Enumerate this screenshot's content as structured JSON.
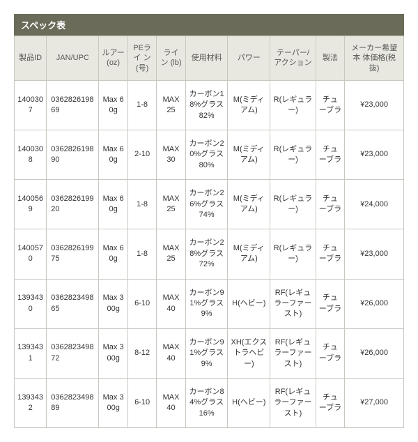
{
  "title": "スペック表",
  "table": {
    "columns": [
      "製品ID",
      "JAN/UPC",
      "ルアー\n(oz)",
      "PEライ\nン(号)",
      "ライン\n(lb)",
      "使用材料",
      "パワー",
      "テーパー/\nアクション",
      "製法",
      "メーカー希望本\n体価格(税抜)"
    ],
    "rows": [
      [
        "1400307",
        "036282619869",
        "Max 60g",
        "1-8",
        "MAX 25",
        "カーボン18%グラス82%",
        "M(ミディアム)",
        "R(レギュラー)",
        "チューブラ",
        "¥23,000"
      ],
      [
        "1400308",
        "036282619890",
        "Max 60g",
        "2-10",
        "MAX 30",
        "カーボン20%グラス80%",
        "M(ミディアム)",
        "R(レギュラー)",
        "チューブラ",
        "¥23,000"
      ],
      [
        "1400569",
        "036282619920",
        "Max 60g",
        "1-8",
        "MAX 25",
        "カーボン26%グラス74%",
        "M(ミディアム)",
        "R(レギュラー)",
        "チューブラ",
        "¥24,000"
      ],
      [
        "1400570",
        "036282619975",
        "Max 60g",
        "1-8",
        "MAX 25",
        "カーボン28%グラス72%",
        "M(ミディアム)",
        "R(レギュラー)",
        "チューブラ",
        "¥23,000"
      ],
      [
        "1393430",
        "036282349865",
        "Max 300g",
        "6-10",
        "MAX 40",
        "カーボン91%グラス9%",
        "H(ヘビー)",
        "RF(レギュラーファースト)",
        "チューブラ",
        "¥26,000"
      ],
      [
        "1393431",
        "036282349872",
        "Max 300g",
        "8-12",
        "MAX 40",
        "カーボン91%グラス9%",
        "XH(エクストラヘビー)",
        "RF(レギュラーファースト)",
        "チューブラ",
        "¥26,000"
      ],
      [
        "1393432",
        "036282349889",
        "Max 300g",
        "6-10",
        "MAX 40",
        "カーボン84%グラス16%",
        "H(ヘビー)",
        "RF(レギュラーファースト)",
        "チューブラ",
        "¥27,000"
      ]
    ]
  },
  "style": {
    "title_bg": "#6b6b59",
    "title_color": "#ffffff",
    "header_bg": "#e8e8e0",
    "border_color": "#c8c8c0",
    "text_color": "#333333",
    "font_size_body": 11,
    "font_size_title": 13
  }
}
